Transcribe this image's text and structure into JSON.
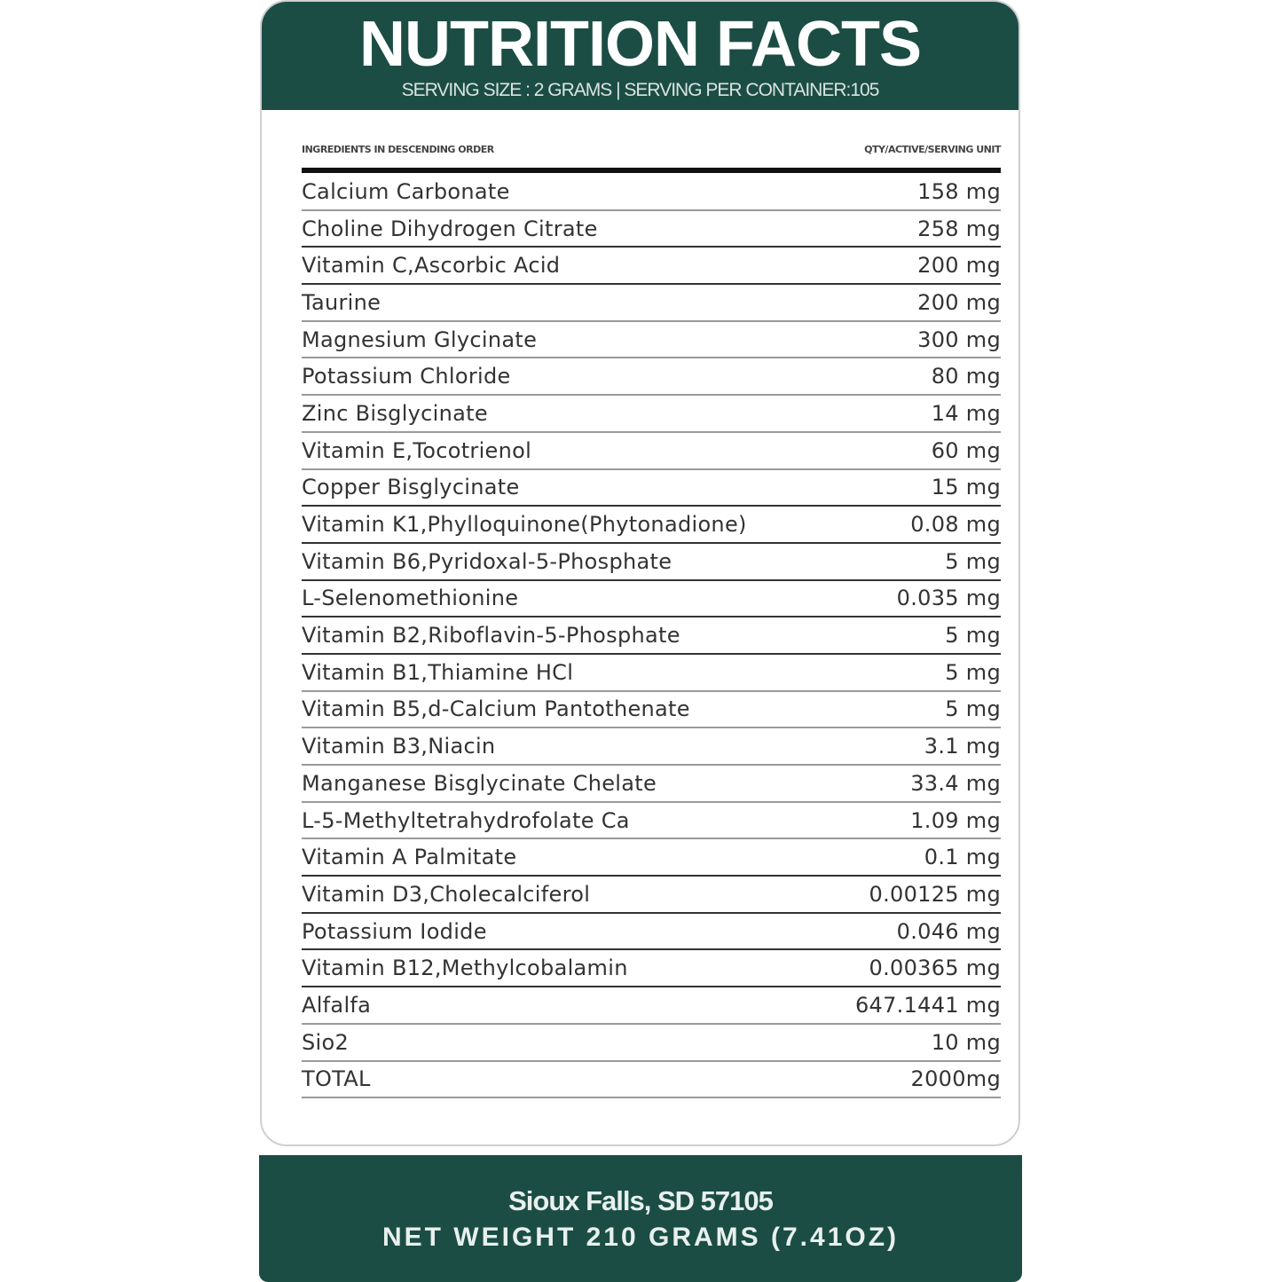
{
  "header": {
    "title": "NUTRITION FACTS",
    "subtitle": "SERVING SIZE : 2 GRAMS | SERVING PER CONTAINER:105"
  },
  "table": {
    "col_ingredient": "INGREDIENTS IN DESCENDING ORDER",
    "col_qty": "QTY/ACTIVE/SERVING UNIT",
    "rows": [
      {
        "name": "Calcium Carbonate",
        "qty": "158 mg"
      },
      {
        "name": "Choline Dihydrogen Citrate",
        "qty": "258 mg"
      },
      {
        "name": "Vitamin C,Ascorbic Acid",
        "qty": "200 mg"
      },
      {
        "name": "Taurine",
        "qty": "200 mg"
      },
      {
        "name": "Magnesium Glycinate",
        "qty": "300 mg"
      },
      {
        "name": "Potassium Chloride",
        "qty": "80 mg"
      },
      {
        "name": "Zinc Bisglycinate",
        "qty": "14 mg"
      },
      {
        "name": "Vitamin E,Tocotrienol",
        "qty": "60 mg"
      },
      {
        "name": "Copper Bisglycinate",
        "qty": "15 mg"
      },
      {
        "name": "Vitamin K1,Phylloquinone(Phytonadione)",
        "qty": "0.08 mg"
      },
      {
        "name": "Vitamin B6,Pyridoxal-5-Phosphate",
        "qty": "5 mg"
      },
      {
        "name": "L-Selenomethionine",
        "qty": "0.035 mg"
      },
      {
        "name": "Vitamin B2,Riboflavin-5-Phosphate",
        "qty": "5 mg"
      },
      {
        "name": "Vitamin B1,Thiamine HCl",
        "qty": "5 mg"
      },
      {
        "name": "Vitamin B5,d-Calcium Pantothenate",
        "qty": "5 mg"
      },
      {
        "name": "Vitamin B3,Niacin",
        "qty": "3.1 mg"
      },
      {
        "name": "Manganese Bisglycinate Chelate",
        "qty": "33.4 mg"
      },
      {
        "name": "L-5-Methyltetrahydrofolate Ca",
        "qty": "1.09 mg"
      },
      {
        "name": "Vitamin A Palmitate",
        "qty": "0.1 mg"
      },
      {
        "name": "Vitamin D3,Cholecalciferol",
        "qty": "0.00125 mg"
      },
      {
        "name": "Potassium Iodide",
        "qty": "0.046 mg"
      },
      {
        "name": "Vitamin B12,Methylcobalamin",
        "qty": "0.00365 mg"
      },
      {
        "name": "Alfalfa",
        "qty": "647.1441 mg"
      },
      {
        "name": "Sio2",
        "qty": "10 mg"
      },
      {
        "name": "TOTAL",
        "qty": "2000mg"
      }
    ]
  },
  "footer": {
    "location": "Sioux Falls, SD 57105",
    "net_weight": "NET WEIGHT 210 GRAMS (7.41OZ)"
  },
  "colors": {
    "brand_green": "#1b4d44"
  }
}
